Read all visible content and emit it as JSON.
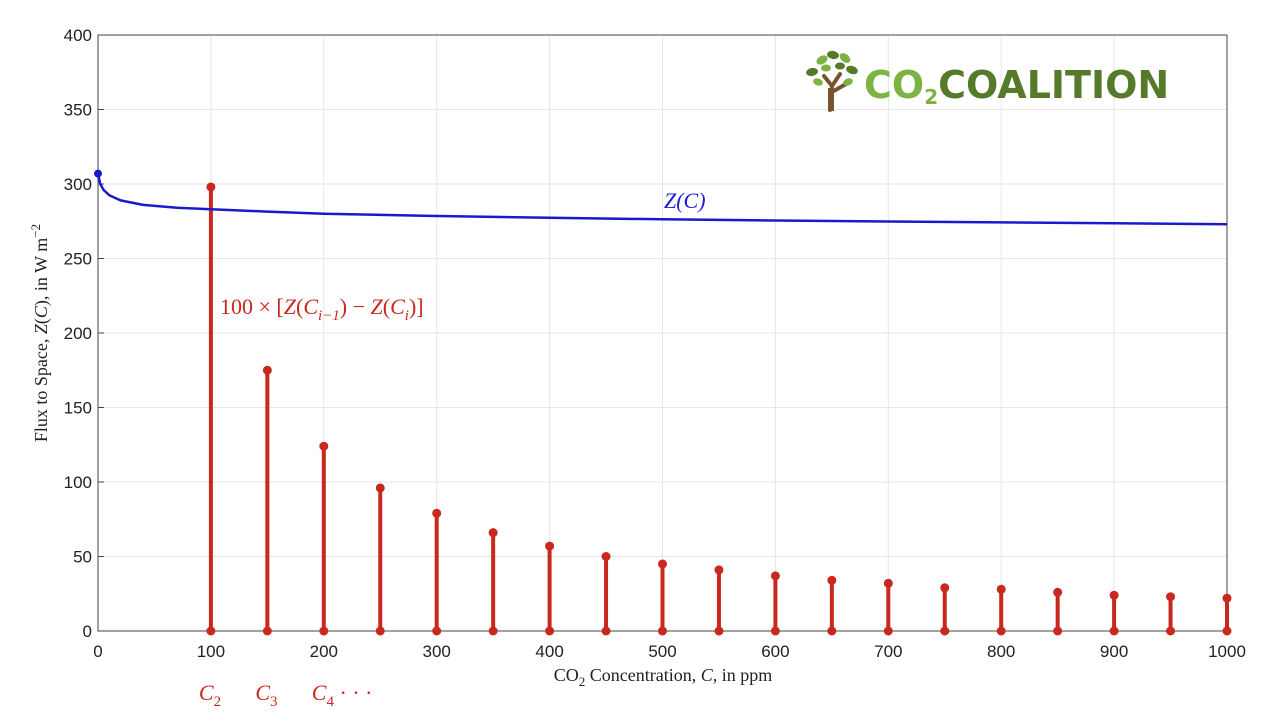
{
  "logo": {
    "part1": "CO",
    "sub": "2",
    "part2": "COALITION",
    "color_light": "#7cb342",
    "color_dark": "#557a2a"
  },
  "chart_data": {
    "type": "line",
    "xlabel_parts": [
      "CO",
      "2",
      " Concentration, ",
      "C",
      ", in ppm"
    ],
    "ylabel_parts": [
      "Flux to Space, ",
      "Z",
      "(",
      "C",
      "), in W m",
      "−2"
    ],
    "xlim": [
      0,
      1000
    ],
    "ylim": [
      0,
      400
    ],
    "xticks": [
      0,
      100,
      200,
      300,
      400,
      500,
      600,
      700,
      800,
      900,
      1000
    ],
    "yticks": [
      0,
      50,
      100,
      150,
      200,
      250,
      300,
      350,
      400
    ],
    "grid": true,
    "series": [
      {
        "label": "Z(C)",
        "color": "#1a1acc",
        "type": "line",
        "x": [
          0,
          2,
          5,
          10,
          20,
          40,
          70,
          100,
          150,
          200,
          300,
          400,
          500,
          600,
          700,
          800,
          900,
          1000
        ],
        "y": [
          307,
          300,
          296,
          292.5,
          289,
          286,
          284,
          283,
          281.5,
          280,
          278.5,
          277.3,
          276.3,
          275.5,
          274.8,
          274.2,
          273.6,
          273
        ]
      },
      {
        "label_parts": [
          "100 × [",
          "Z",
          "(",
          "C",
          "i−1",
          ") − ",
          "Z",
          "(",
          "C",
          "i",
          ")]"
        ],
        "color": "#c8281e",
        "type": "stem",
        "x": [
          100,
          150,
          200,
          250,
          300,
          350,
          400,
          450,
          500,
          550,
          600,
          650,
          700,
          750,
          800,
          850,
          900,
          950,
          1000
        ],
        "y": [
          298,
          175,
          124,
          96,
          79,
          66,
          57,
          50,
          45,
          41,
          37,
          34,
          32,
          29,
          28,
          26,
          24,
          23,
          22
        ]
      }
    ],
    "start_marker": {
      "x": 0,
      "y": 307
    },
    "bottom_labels": [
      {
        "x": 100,
        "letter": "C",
        "sub": "2",
        "suffix": ""
      },
      {
        "x": 150,
        "letter": "C",
        "sub": "3",
        "suffix": ""
      },
      {
        "x": 200,
        "letter": "C",
        "sub": "4",
        "suffix": " · · ·"
      }
    ]
  }
}
